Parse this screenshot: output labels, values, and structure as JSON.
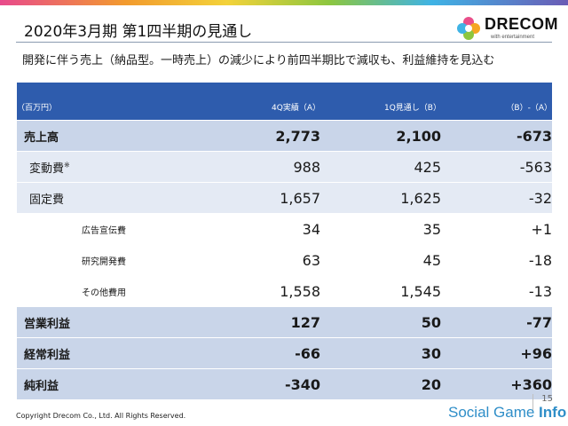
{
  "header": {
    "title": "2020年3月期 第1四半期の見通し",
    "subtitle": "開発に伴う売上（納品型。一時売上）の減少により前四半期比で減収も、利益維持を見込む"
  },
  "logo": {
    "wordmark": "DRECOM",
    "tagline": "with entertainment"
  },
  "table": {
    "unit": "（百万円）",
    "columns": [
      "4Q実績（A）",
      "1Q見通し（B）",
      "（B）-（A）"
    ],
    "rows": [
      {
        "label": "売上高",
        "a": "2,773",
        "b": "2,100",
        "diff": "-673"
      },
      {
        "label": "変動費",
        "note": "※",
        "a": "988",
        "b": "425",
        "diff": "-563"
      },
      {
        "label": "固定費",
        "a": "1,657",
        "b": "1,625",
        "diff": "-32"
      },
      {
        "label": "広告宣伝費",
        "a": "34",
        "b": "35",
        "diff": "+1"
      },
      {
        "label": "研究開発費",
        "a": "63",
        "b": "45",
        "diff": "-18"
      },
      {
        "label": "その他費用",
        "a": "1,558",
        "b": "1,545",
        "diff": "-13"
      },
      {
        "label": "営業利益",
        "a": "127",
        "b": "50",
        "diff": "-77"
      },
      {
        "label": "経常利益",
        "a": "-66",
        "b": "30",
        "diff": "+96"
      },
      {
        "label": "純利益",
        "a": "-340",
        "b": "20",
        "diff": "+360"
      }
    ]
  },
  "footer": {
    "copyright": "Copyright Drecom Co., Ltd. All Rights Reserved.",
    "brand_regular": "Social Game ",
    "brand_bold": "Info",
    "page_number": "15"
  },
  "colors": {
    "header_blue": "#2e5cad",
    "row_strong": "#c9d5e9",
    "row_light": "#e4eaf4",
    "brand_blue": "#2f8ec8"
  }
}
